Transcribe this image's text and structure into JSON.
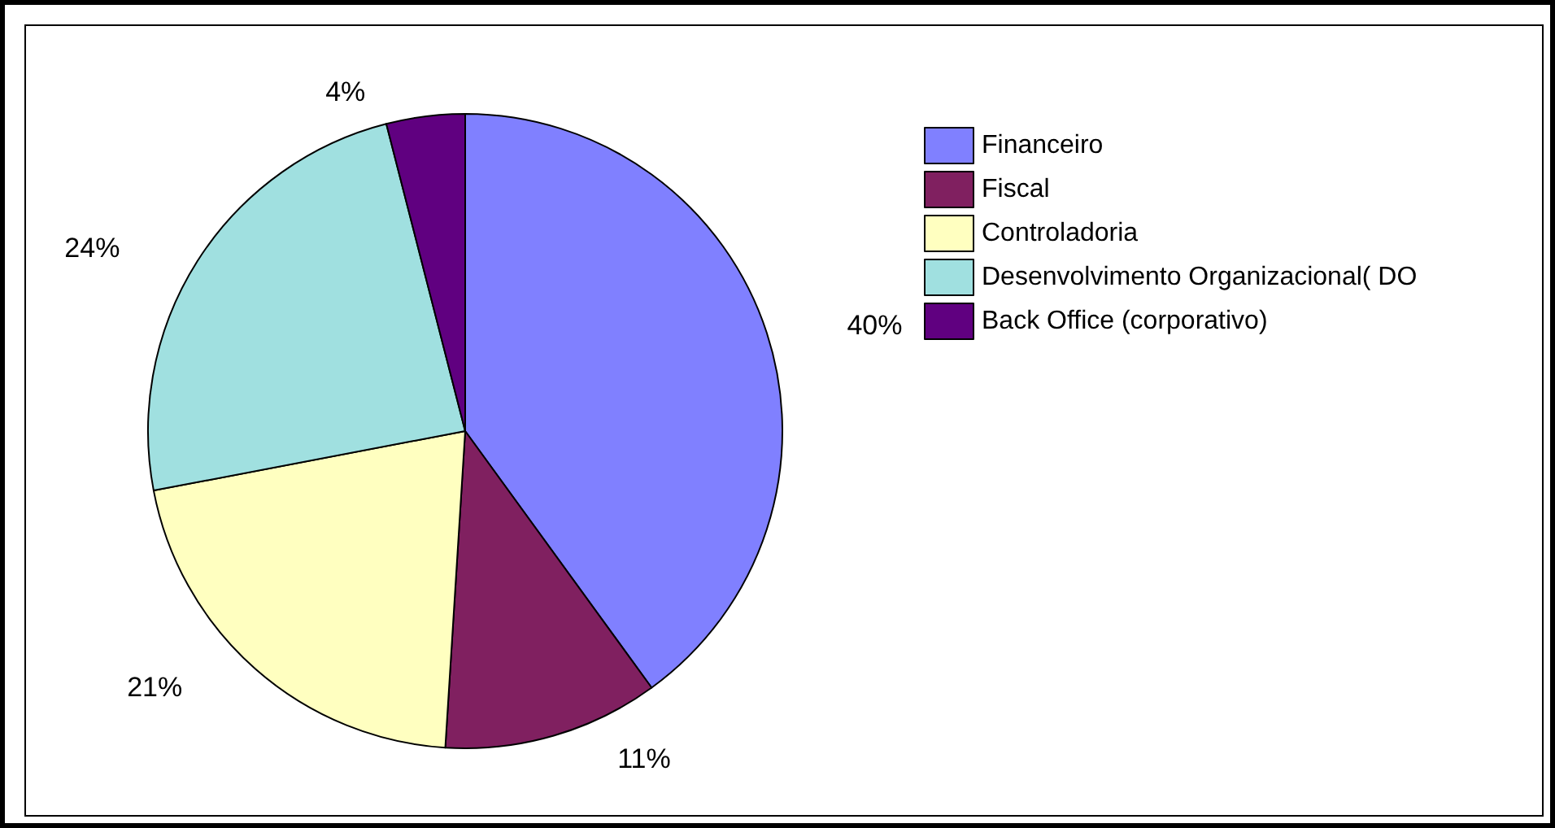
{
  "chart_data": {
    "type": "pie",
    "categories": [
      "Financeiro",
      "Fiscal",
      "Controladoria",
      "Desenvolvimento Organizacional( DO",
      "Back Office (corporativo)"
    ],
    "values": [
      40,
      11,
      21,
      24,
      4
    ],
    "colors": [
      "#8080ff",
      "#802060",
      "#ffffc0",
      "#a0e0e0",
      "#600080"
    ],
    "value_labels": [
      "40%",
      "11%",
      "21%",
      "24%",
      "4%"
    ],
    "legend": "top right"
  }
}
